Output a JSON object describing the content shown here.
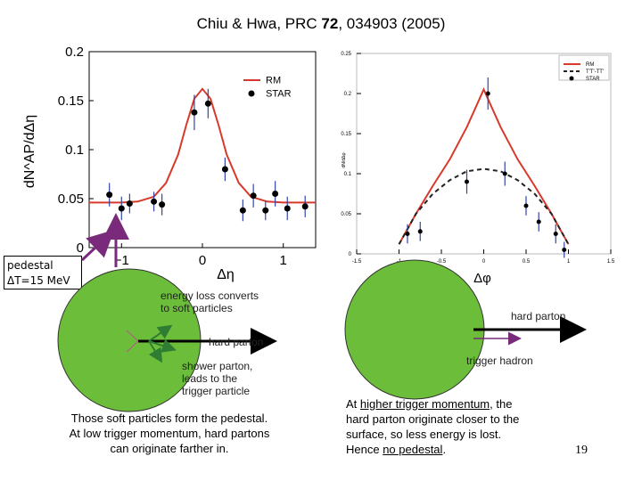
{
  "title": {
    "authors": "Chiu & Hwa, PRC ",
    "volume": "72",
    "rest": ", 034903 (2005)"
  },
  "pedestal_box": {
    "line1": "pedestal",
    "line2": "ΔT=15 MeV"
  },
  "text": {
    "energy_loss": [
      "energy loss converts",
      "to soft particles"
    ],
    "hard_parton_left": "hard parton",
    "shower_parton": [
      "shower parton,",
      "leads to the",
      "trigger particle"
    ],
    "pedestal_note": [
      "Those soft particles form the pedestal.",
      "At low trigger momentum, hard partons",
      "can originate farther in."
    ],
    "hard_parton_right": "hard parton",
    "trigger_hadron": "trigger hadron",
    "high_p_note": {
      "l1_pre": "At ",
      "l1_u": "higher trigger momentum",
      "l1_post": ", the",
      "l2": "hard parton originate closer to the",
      "l3": "surface, so less energy is lost.",
      "l4_pre": "Hence ",
      "l4_u": "no pedestal",
      "l4_post": "."
    },
    "page_number": "19"
  },
  "colors": {
    "model": "#d8392b",
    "data": "#000000",
    "disk": "#6bbd3a",
    "arrow_purple": "#7a2a7a",
    "arrow_green": "#2e7d32"
  },
  "chart_data": [
    {
      "type": "line",
      "ylabel": "dN^AP/dΔη",
      "xlabel": "Δη",
      "xlim": [
        -1.4,
        1.4
      ],
      "ylim": [
        0,
        0.2
      ],
      "x_ticks": [
        "−1",
        "0",
        "1"
      ],
      "y_ticks": [
        "0",
        "0.05",
        "0.1",
        "0.15",
        "0.2"
      ],
      "legend": {
        "position": "top-right",
        "entries": [
          "RM",
          "STAR"
        ]
      },
      "series": [
        {
          "name": "RM",
          "style": "line",
          "x": [
            -1.4,
            -1.2,
            -1.0,
            -0.8,
            -0.6,
            -0.45,
            -0.3,
            -0.2,
            -0.1,
            0.0,
            0.1,
            0.2,
            0.3,
            0.45,
            0.6,
            0.8,
            1.0,
            1.2,
            1.4
          ],
          "y": [
            0.046,
            0.046,
            0.046,
            0.047,
            0.052,
            0.066,
            0.095,
            0.125,
            0.152,
            0.162,
            0.152,
            0.125,
            0.095,
            0.066,
            0.052,
            0.047,
            0.046,
            0.046,
            0.046
          ]
        },
        {
          "name": "STAR",
          "style": "points",
          "x": [
            -1.15,
            -1.0,
            -0.9,
            -0.6,
            -0.5,
            -0.1,
            0.07,
            0.28,
            0.5,
            0.63,
            0.78,
            0.9,
            1.05,
            1.27
          ],
          "y": [
            0.054,
            0.04,
            0.045,
            0.047,
            0.044,
            0.138,
            0.147,
            0.08,
            0.038,
            0.053,
            0.038,
            0.055,
            0.04,
            0.042
          ],
          "err": [
            0.012,
            0.012,
            0.01,
            0.01,
            0.011,
            0.018,
            0.015,
            0.012,
            0.011,
            0.012,
            0.01,
            0.013,
            0.012,
            0.011
          ]
        }
      ]
    },
    {
      "type": "line",
      "xlabel": "Δφ",
      "ylabel": "dN/dΔφ",
      "xlim": [
        -1.5,
        1.5
      ],
      "ylim": [
        0,
        0.25
      ],
      "x_ticks": [
        "-1.5",
        "-1",
        "-0.5",
        "0",
        "0.5",
        "1",
        "1.5"
      ],
      "y_ticks": [
        "0",
        "0.05",
        "0.1",
        "0.15",
        "0.2",
        "0.25"
      ],
      "legend": {
        "position": "top-right",
        "entries": [
          "RM",
          "T'T'-TT'",
          "STAR"
        ]
      },
      "series": [
        {
          "name": "RM",
          "style": "line",
          "x": [
            -1.0,
            -0.8,
            -0.6,
            -0.4,
            -0.2,
            0.0,
            0.2,
            0.4,
            0.6,
            0.8,
            1.0
          ],
          "y": [
            0.012,
            0.05,
            0.085,
            0.118,
            0.158,
            0.205,
            0.158,
            0.118,
            0.085,
            0.05,
            0.012
          ]
        },
        {
          "name": "T'T'-TT'",
          "style": "dashed",
          "x": [
            -1.0,
            -0.8,
            -0.6,
            -0.4,
            -0.2,
            0.0,
            0.2,
            0.4,
            0.6,
            0.8,
            1.0
          ],
          "y": [
            0.012,
            0.05,
            0.075,
            0.092,
            0.103,
            0.106,
            0.103,
            0.092,
            0.075,
            0.05,
            0.012
          ]
        },
        {
          "name": "STAR",
          "style": "points",
          "x": [
            -0.9,
            -0.75,
            -0.2,
            0.05,
            0.25,
            0.5,
            0.65,
            0.85,
            0.95
          ],
          "y": [
            0.025,
            0.028,
            0.09,
            0.2,
            0.1,
            0.06,
            0.04,
            0.025,
            0.005
          ],
          "err": [
            0.012,
            0.012,
            0.015,
            0.02,
            0.015,
            0.012,
            0.012,
            0.012,
            0.01
          ]
        }
      ]
    }
  ]
}
